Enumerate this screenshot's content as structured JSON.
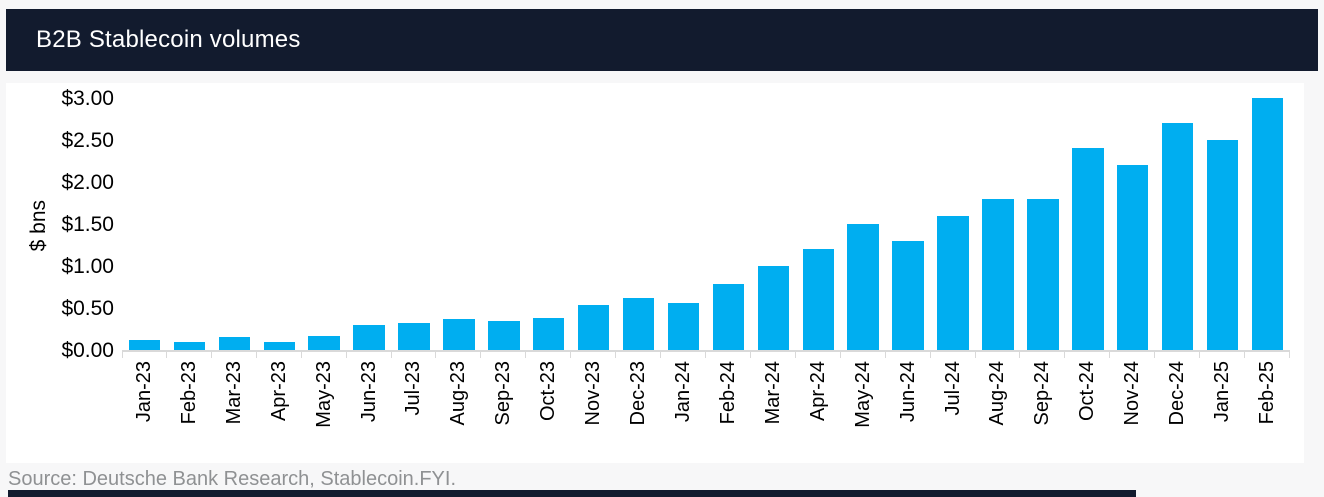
{
  "header": {
    "title": "B2B Stablecoin volumes"
  },
  "chart_data": {
    "type": "bar",
    "title": "B2B Stablecoin volumes",
    "categories": [
      "Jan-23",
      "Feb-23",
      "Mar-23",
      "Apr-23",
      "May-23",
      "Jun-23",
      "Jul-23",
      "Aug-23",
      "Sep-23",
      "Oct-23",
      "Nov-23",
      "Dec-23",
      "Jan-24",
      "Feb-24",
      "Mar-24",
      "Apr-24",
      "May-24",
      "Jun-24",
      "Jul-24",
      "Aug-24",
      "Sep-24",
      "Oct-24",
      "Nov-24",
      "Dec-24",
      "Jan-25",
      "Feb-25"
    ],
    "values": [
      0.12,
      0.1,
      0.15,
      0.1,
      0.17,
      0.3,
      0.32,
      0.37,
      0.35,
      0.38,
      0.53,
      0.62,
      0.56,
      0.78,
      1.0,
      1.2,
      1.5,
      1.3,
      1.6,
      1.8,
      1.8,
      2.4,
      2.2,
      2.7,
      2.5,
      3.0
    ],
    "xlabel": "",
    "ylabel": "$ bns",
    "ylim": [
      0,
      3
    ],
    "ytick_step": 0.5,
    "ytick_labels": [
      "$0.00",
      "$0.50",
      "$1.00",
      "$1.50",
      "$2.00",
      "$2.50",
      "$3.00"
    ],
    "grid": false,
    "legend": false,
    "bar_color": "#00AEF0"
  },
  "footer": {
    "source": "Source: Deutsche Bank Research, Stablecoin.FYI."
  },
  "colors": {
    "header_bg": "#121b2e",
    "page_bg": "#f7f7f8",
    "panel_bg": "#ffffff",
    "bar": "#00AEF0",
    "axis_line": "#d9d9d9",
    "source_text": "#8f9193"
  }
}
